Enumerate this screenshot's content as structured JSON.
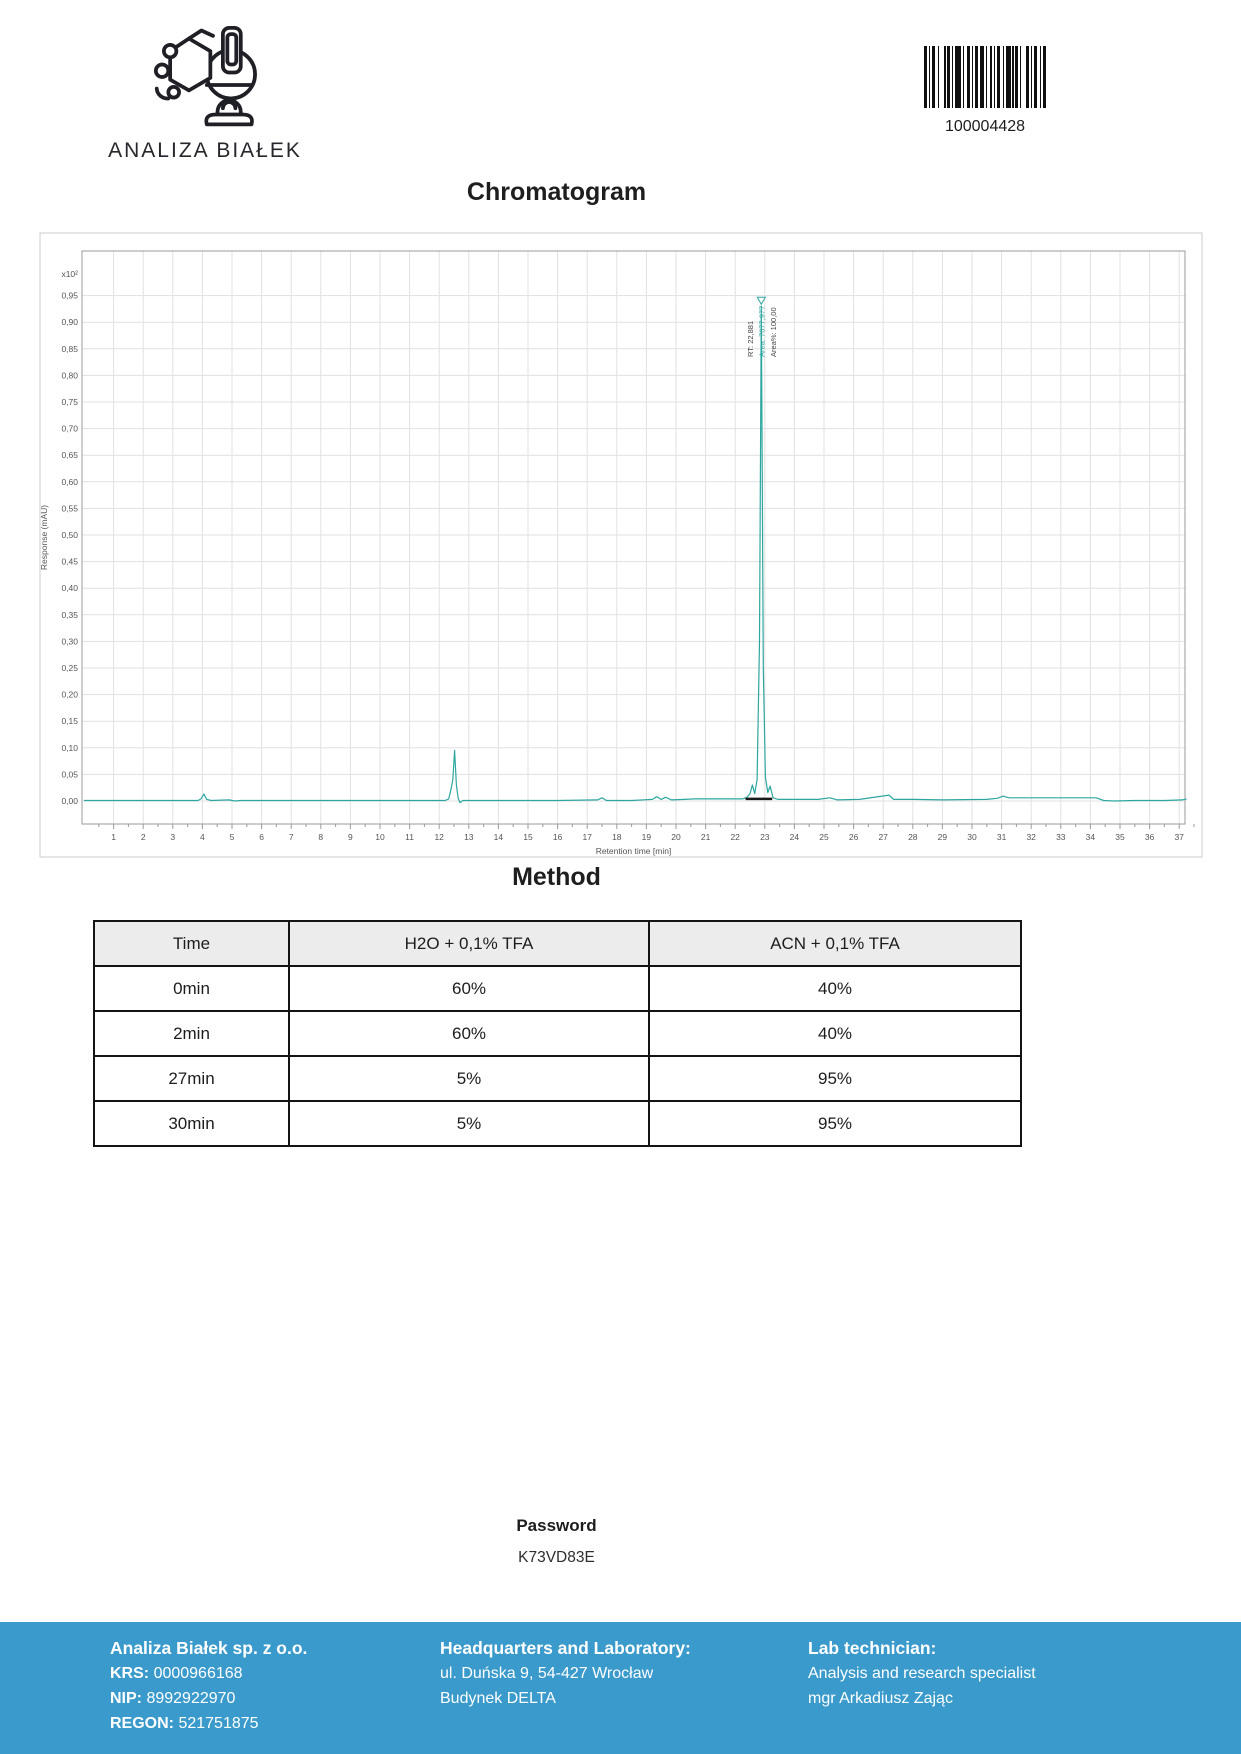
{
  "colors": {
    "accent_teal": "#2ea6a0",
    "footer_bg": "#3a9acb",
    "grid": "#e1e1e1",
    "plot_frame": "#9b9b9b",
    "tick_text": "#555555",
    "table_header_bg": "#ececec"
  },
  "header": {
    "logo_text": "ANALIZA BIAŁEK",
    "barcode_value": "100004428"
  },
  "chromatogram_section": {
    "title": "Chromatogram"
  },
  "chart_data": {
    "type": "line",
    "title": "Chromatogram",
    "xlabel": "Retention time [min]",
    "ylabel": "Response (mAU)",
    "y_scale_label": "x10²",
    "xlim": [
      0,
      37.3
    ],
    "ylim": [
      -0.045,
      1.035
    ],
    "grid": true,
    "xticks": [
      1,
      2,
      3,
      4,
      5,
      6,
      7,
      8,
      9,
      10,
      11,
      12,
      13,
      14,
      15,
      16,
      17,
      18,
      19,
      20,
      21,
      22,
      23,
      24,
      25,
      26,
      27,
      28,
      29,
      30,
      31,
      32,
      33,
      34,
      35,
      36,
      37
    ],
    "ytick_step": 0.05,
    "ytick_labels": [
      "0,00",
      "0,05",
      "0,10",
      "0,15",
      "0,20",
      "0,25",
      "0,30",
      "0,35",
      "0,40",
      "0,45",
      "0,50",
      "0,55",
      "0,60",
      "0,65",
      "0,70",
      "0,75",
      "0,80",
      "0,85",
      "0,90",
      "0,95"
    ],
    "line_color": "#2ea6a0",
    "series": [
      {
        "name": "signal",
        "points": [
          [
            0,
            0.001
          ],
          [
            1,
            0.001
          ],
          [
            2,
            0.001
          ],
          [
            3,
            0.001
          ],
          [
            3.85,
            0.001
          ],
          [
            3.95,
            0.004
          ],
          [
            4.05,
            0.013
          ],
          [
            4.15,
            0.003
          ],
          [
            4.3,
            0.001
          ],
          [
            4.9,
            0.002
          ],
          [
            5.1,
            0.0
          ],
          [
            5.3,
            0.001
          ],
          [
            6,
            0.001
          ],
          [
            8,
            0.001
          ],
          [
            10,
            0.001
          ],
          [
            12.2,
            0.001
          ],
          [
            12.32,
            0.004
          ],
          [
            12.4,
            0.022
          ],
          [
            12.46,
            0.04
          ],
          [
            12.52,
            0.095
          ],
          [
            12.58,
            0.03
          ],
          [
            12.64,
            0.006
          ],
          [
            12.7,
            -0.003
          ],
          [
            12.8,
            0.001
          ],
          [
            14,
            0.001
          ],
          [
            16,
            0.001
          ],
          [
            17.35,
            0.002
          ],
          [
            17.5,
            0.006
          ],
          [
            17.65,
            0.001
          ],
          [
            18.5,
            0.001
          ],
          [
            19.2,
            0.003
          ],
          [
            19.35,
            0.008
          ],
          [
            19.5,
            0.003
          ],
          [
            19.65,
            0.007
          ],
          [
            19.85,
            0.002
          ],
          [
            20.3,
            0.003
          ],
          [
            20.6,
            0.004
          ],
          [
            21.5,
            0.004
          ],
          [
            22.25,
            0.004
          ],
          [
            22.4,
            0.007
          ],
          [
            22.5,
            0.014
          ],
          [
            22.58,
            0.03
          ],
          [
            22.66,
            0.014
          ],
          [
            22.74,
            0.04
          ],
          [
            22.82,
            0.3
          ],
          [
            22.881,
            0.93
          ],
          [
            22.95,
            0.25
          ],
          [
            23.02,
            0.045
          ],
          [
            23.1,
            0.016
          ],
          [
            23.18,
            0.028
          ],
          [
            23.28,
            0.006
          ],
          [
            23.45,
            0.003
          ],
          [
            24,
            0.003
          ],
          [
            24.8,
            0.003
          ],
          [
            25.2,
            0.006
          ],
          [
            25.45,
            0.002
          ],
          [
            26.2,
            0.003
          ],
          [
            27.2,
            0.011
          ],
          [
            27.35,
            0.003
          ],
          [
            28,
            0.003
          ],
          [
            29,
            0.002
          ],
          [
            30.5,
            0.003
          ],
          [
            30.85,
            0.005
          ],
          [
            31.05,
            0.009
          ],
          [
            31.25,
            0.006
          ],
          [
            31.6,
            0.006
          ],
          [
            33,
            0.006
          ],
          [
            34.2,
            0.006
          ],
          [
            34.45,
            0.001
          ],
          [
            34.8,
            0.0
          ],
          [
            35.5,
            0.001
          ],
          [
            36.5,
            0.001
          ],
          [
            37.1,
            0.002
          ],
          [
            37.25,
            0.004
          ]
        ]
      }
    ],
    "peaks": [
      {
        "rt": 4.05,
        "height": 0.013
      },
      {
        "rt": 12.52,
        "height": 0.095
      },
      {
        "rt": 22.881,
        "height": 0.93,
        "area": "7677,977",
        "area_percent": "100,00"
      }
    ],
    "peak_annotation": {
      "x": 22.881,
      "lines": [
        "RT: 22,881",
        "Area: 7677,977",
        "Area%: 100,00"
      ],
      "highlight_line_index": 1
    },
    "integration_baseline": {
      "x1": 22.35,
      "x2": 23.25,
      "y": 0.004,
      "color": "#1a1a1a"
    }
  },
  "method": {
    "title": "Method",
    "table": {
      "headers": [
        "Time",
        "H2O + 0,1% TFA",
        "ACN + 0,1% TFA"
      ],
      "rows": [
        [
          "0min",
          "60%",
          "40%"
        ],
        [
          "2min",
          "60%",
          "40%"
        ],
        [
          "27min",
          "5%",
          "95%"
        ],
        [
          "30min",
          "5%",
          "95%"
        ]
      ]
    }
  },
  "password": {
    "label": "Password",
    "value": "K73VD83E"
  },
  "footer": {
    "company": {
      "name": "Analiza Białek sp. z o.o.",
      "krs_label": "KRS:",
      "krs_value": "0000966168",
      "nip_label": "NIP:",
      "nip_value": "8992922970",
      "regon_label": "REGON:",
      "regon_value": "521751875"
    },
    "headquarters": {
      "title": "Headquarters and Laboratory:",
      "address_line1": "ul. Duńska 9, 54-427 Wrocław",
      "address_line2": "Budynek DELTA"
    },
    "technician": {
      "title": "Lab technician:",
      "line1": "Analysis and research specialist",
      "line2": "mgr Arkadiusz Zając"
    }
  }
}
